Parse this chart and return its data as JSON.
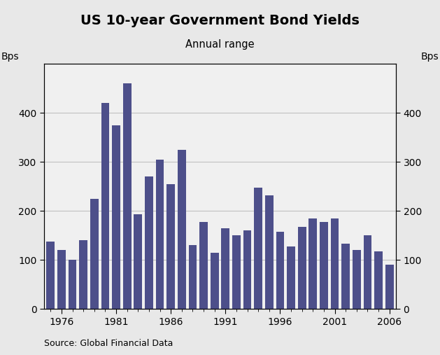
{
  "title": "US 10-year Government Bond Yields",
  "subtitle": "Annual range",
  "ylabel_left": "Bps",
  "ylabel_right": "Bps",
  "source": "Source: Global Financial Data",
  "bar_color": "#4d4f8a",
  "background_color": "#e8e8e8",
  "plot_bg_color": "#f0f0f0",
  "years": [
    1975,
    1976,
    1977,
    1978,
    1979,
    1980,
    1981,
    1982,
    1983,
    1984,
    1985,
    1986,
    1987,
    1988,
    1989,
    1990,
    1991,
    1992,
    1993,
    1994,
    1995,
    1996,
    1997,
    1998,
    1999,
    2000,
    2001,
    2002,
    2003,
    2004,
    2005,
    2006
  ],
  "values": [
    138,
    120,
    100,
    140,
    225,
    420,
    375,
    460,
    193,
    270,
    305,
    255,
    325,
    130,
    178,
    115,
    165,
    150,
    160,
    248,
    232,
    157,
    128,
    167,
    185,
    178,
    185,
    133,
    120,
    150,
    118,
    90
  ],
  "ylim": [
    0,
    500
  ],
  "yticks": [
    0,
    100,
    200,
    300,
    400
  ],
  "xticks": [
    1976,
    1981,
    1986,
    1991,
    1996,
    2001,
    2006
  ],
  "xlim": [
    1974.4,
    2006.6
  ],
  "title_fontsize": 14,
  "subtitle_fontsize": 10.5,
  "tick_fontsize": 10,
  "source_fontsize": 9
}
